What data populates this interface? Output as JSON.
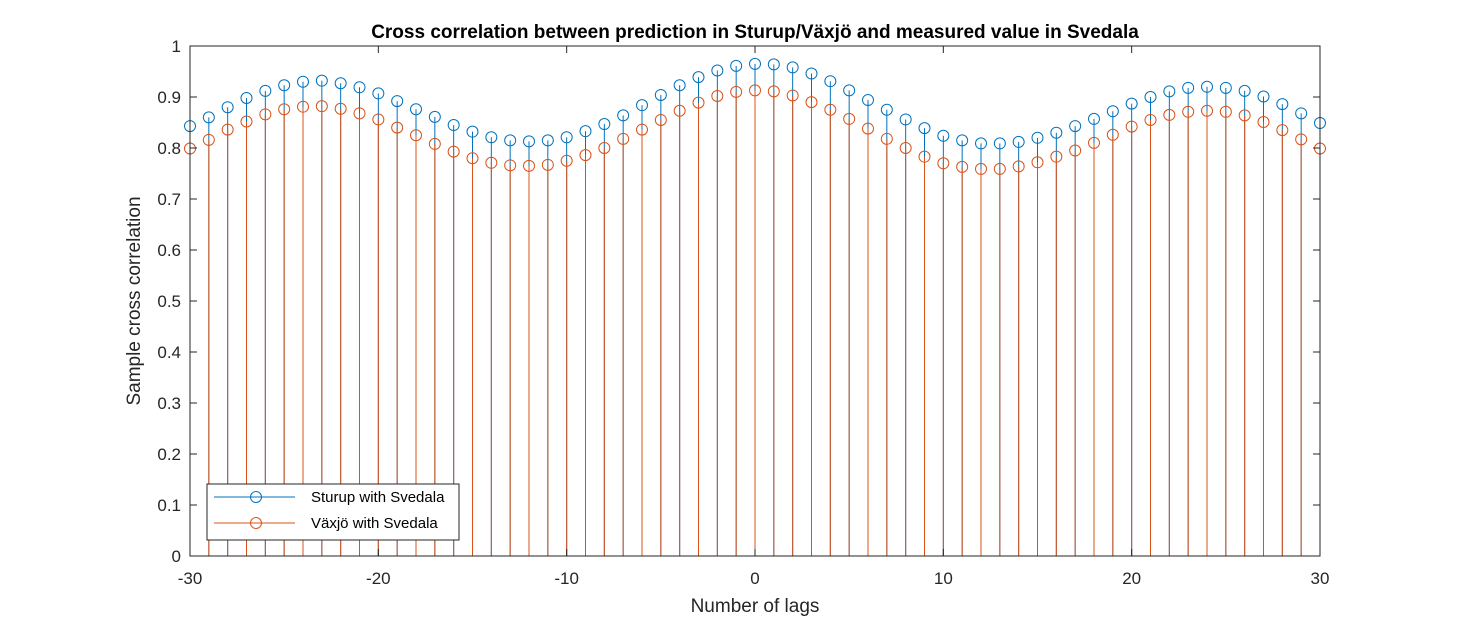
{
  "chart_data": {
    "type": "stem",
    "title": "Cross correlation between prediction in Sturup/Växjö and measured value in Svedala",
    "xlabel": "Number of lags",
    "ylabel": "Sample cross correlation",
    "xlim": [
      -30,
      30
    ],
    "ylim": [
      0,
      1
    ],
    "xticks": [
      -30,
      -20,
      -10,
      0,
      10,
      20,
      30
    ],
    "xtick_labels": [
      "-30",
      "-20",
      "-10",
      "0",
      "10",
      "20",
      "30"
    ],
    "yticks": [
      0,
      0.1,
      0.2,
      0.3,
      0.4,
      0.5,
      0.6,
      0.7,
      0.8,
      0.9,
      1
    ],
    "ytick_labels": [
      "0",
      "0.1",
      "0.2",
      "0.3",
      "0.4",
      "0.5",
      "0.6",
      "0.7",
      "0.8",
      "0.9",
      "1"
    ],
    "grid": false,
    "legend_position": "bottom-left",
    "x": [
      -30,
      -29,
      -28,
      -27,
      -26,
      -25,
      -24,
      -23,
      -22,
      -21,
      -20,
      -19,
      -18,
      -17,
      -16,
      -15,
      -14,
      -13,
      -12,
      -11,
      -10,
      -9,
      -8,
      -7,
      -6,
      -5,
      -4,
      -3,
      -2,
      -1,
      0,
      1,
      2,
      3,
      4,
      5,
      6,
      7,
      8,
      9,
      10,
      11,
      12,
      13,
      14,
      15,
      16,
      17,
      18,
      19,
      20,
      21,
      22,
      23,
      24,
      25,
      26,
      27,
      28,
      29,
      30
    ],
    "series": [
      {
        "name": "Sturup with Svedala",
        "color": "#0072BD",
        "marker": "circle",
        "values": [
          0.843,
          0.86,
          0.88,
          0.898,
          0.912,
          0.923,
          0.93,
          0.932,
          0.927,
          0.919,
          0.907,
          0.892,
          0.876,
          0.861,
          0.845,
          0.832,
          0.821,
          0.815,
          0.813,
          0.815,
          0.821,
          0.833,
          0.847,
          0.864,
          0.884,
          0.904,
          0.923,
          0.939,
          0.952,
          0.961,
          0.965,
          0.964,
          0.958,
          0.946,
          0.931,
          0.913,
          0.894,
          0.875,
          0.856,
          0.839,
          0.824,
          0.815,
          0.809,
          0.809,
          0.812,
          0.82,
          0.83,
          0.843,
          0.857,
          0.872,
          0.887,
          0.9,
          0.911,
          0.918,
          0.92,
          0.918,
          0.912,
          0.901,
          0.886,
          0.868,
          0.849
        ]
      },
      {
        "name": "Växjö with Svedala",
        "color": "#D95319",
        "marker": "circle",
        "values": [
          0.799,
          0.816,
          0.836,
          0.852,
          0.866,
          0.876,
          0.881,
          0.882,
          0.877,
          0.868,
          0.856,
          0.84,
          0.825,
          0.808,
          0.793,
          0.78,
          0.771,
          0.766,
          0.765,
          0.767,
          0.775,
          0.786,
          0.8,
          0.818,
          0.836,
          0.855,
          0.873,
          0.889,
          0.902,
          0.91,
          0.913,
          0.911,
          0.903,
          0.89,
          0.875,
          0.857,
          0.838,
          0.818,
          0.8,
          0.783,
          0.77,
          0.763,
          0.759,
          0.759,
          0.764,
          0.772,
          0.783,
          0.795,
          0.81,
          0.826,
          0.842,
          0.855,
          0.865,
          0.871,
          0.873,
          0.871,
          0.864,
          0.851,
          0.835,
          0.817,
          0.799
        ]
      }
    ]
  }
}
